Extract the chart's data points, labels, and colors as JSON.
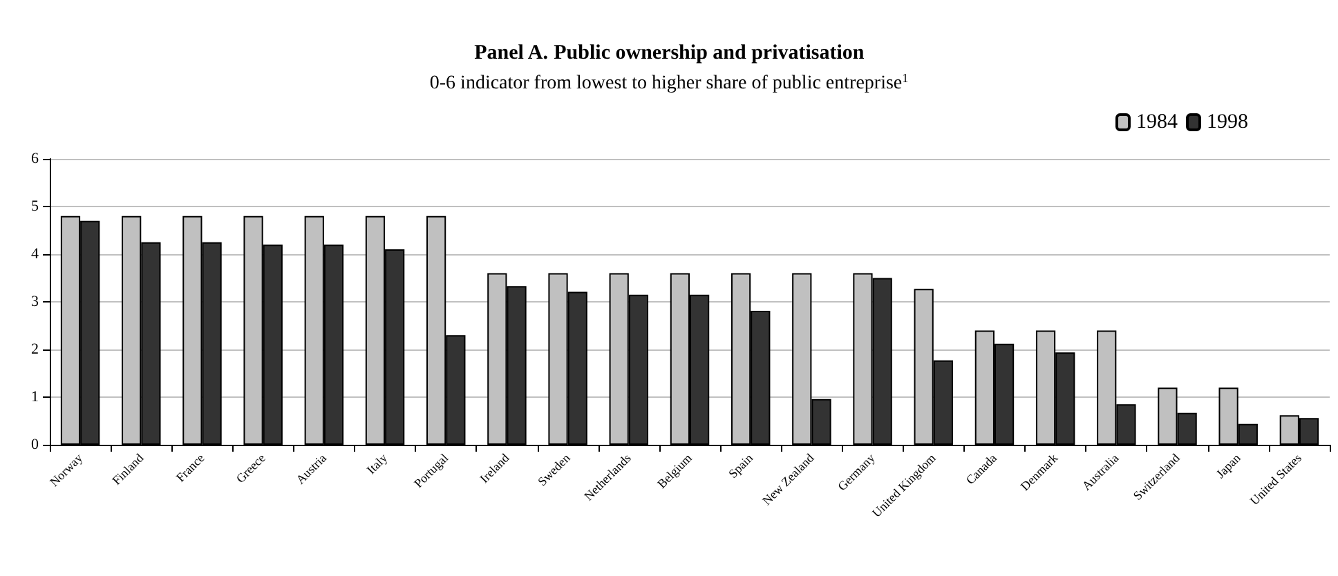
{
  "chart_data": {
    "type": "bar",
    "title": "Panel A. Public ownership and privatisation",
    "subtitle": "0-6 indicator from lowest to higher share of public entreprise$^{1}$",
    "categories": [
      "Norway",
      "Finland",
      "France",
      "Greece",
      "Austria",
      "Italy",
      "Portugal",
      "Ireland",
      "Sweden",
      "Netherlands",
      "Belgium",
      "Spain",
      "New Zealand",
      "Germany",
      "United Kingdom",
      "Canada",
      "Denmark",
      "Australia",
      "Switzerland",
      "Japan",
      "United States"
    ],
    "series": [
      {
        "name": "1984",
        "color": "#c0c0c0",
        "values": [
          4.8,
          4.8,
          4.8,
          4.8,
          4.8,
          4.8,
          4.8,
          3.6,
          3.6,
          3.6,
          3.6,
          3.6,
          3.6,
          3.6,
          3.27,
          2.4,
          2.4,
          2.4,
          1.2,
          1.2,
          0.62
        ]
      },
      {
        "name": "1998",
        "color": "#333333",
        "values": [
          4.7,
          4.25,
          4.25,
          4.2,
          4.2,
          4.1,
          2.3,
          3.33,
          3.21,
          3.15,
          3.15,
          2.81,
          0.96,
          3.5,
          1.77,
          2.12,
          1.94,
          0.85,
          0.67,
          0.44,
          0.56
        ]
      }
    ],
    "ylim": [
      0,
      6
    ],
    "yticks": [
      0,
      1,
      2,
      3,
      4,
      5,
      6
    ],
    "grid": "y",
    "legend": "top right"
  }
}
